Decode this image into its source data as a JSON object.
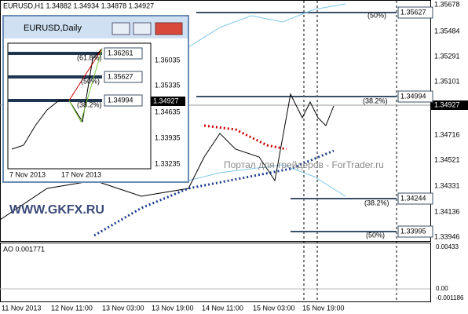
{
  "header": {
    "symbol_info": "EURUSD,H1  1.34882 1.34934 1.34878 1.34927"
  },
  "price_axis": {
    "labels": [
      "1.35678",
      "1.35484",
      "1.35291",
      "1.35101",
      "1.34927",
      "1.34716",
      "1.34521",
      "1.34331",
      "1.34136",
      "1.33946"
    ]
  },
  "levels": {
    "boxes": [
      "1.35627",
      "1.34994",
      "1.34244",
      "1.33995"
    ],
    "fib": [
      "(50%)",
      "(38.2%)",
      "(38.2%)",
      "(50%)"
    ]
  },
  "indicator": {
    "label": "AO 0.001771",
    "axis": [
      "0.00433",
      "0.00",
      "-0.001186"
    ]
  },
  "time_axis": [
    "11 Nov 2013",
    "12 Nov 11:00",
    "13 Nov 03:00",
    "13 Nov 19:00",
    "14 Nov 11:00",
    "15 Nov 03:00",
    "15 Nov 19:00"
  ],
  "watermarks": [
    "WWW.GKFX.RU",
    "Портал для трейдеров - ForTrader.ru"
  ],
  "inset": {
    "title": "EURUSD,Daily",
    "axis": [
      "1.36035",
      "1.35335",
      "1.34635",
      "1.33935",
      "1.33235"
    ],
    "current": "1.34927",
    "boxes": [
      "1.36261",
      "1.35627",
      "1.34994"
    ],
    "fib": [
      "(61.8%)",
      "(50%)",
      "(38.2%)"
    ],
    "dates": [
      "7 Nov 2013",
      "17 Nov 2013"
    ]
  }
}
